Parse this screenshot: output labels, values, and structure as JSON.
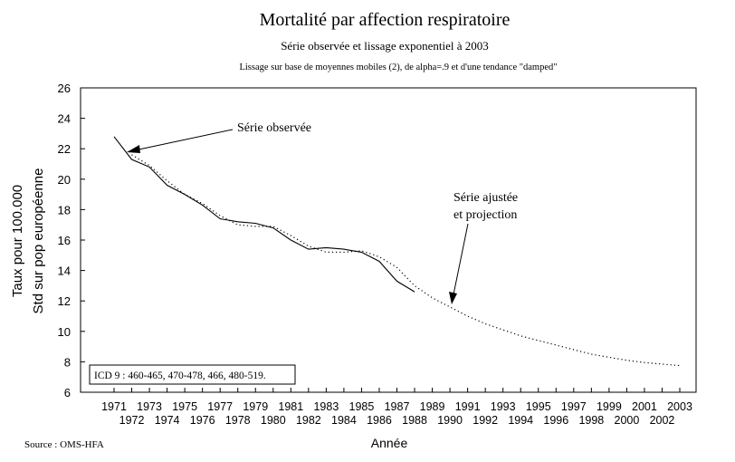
{
  "chart_data": {
    "type": "line",
    "title": "Mortalité par affection respiratoire",
    "subtitle": "Série observée et  lissage exponentiel à 2003",
    "subtitle2": "Lissage sur base de moyennes mobiles (2), de alpha=.9 et d'une tendance \"damped\"",
    "xlabel": "Année",
    "ylabel_line1": "Taux pour 100.000",
    "ylabel_line2": "Std sur pop européenne",
    "ylim": [
      6,
      26
    ],
    "yticks": [
      6,
      8,
      10,
      12,
      14,
      16,
      18,
      20,
      22,
      24,
      26
    ],
    "xlim": [
      1971,
      2003
    ],
    "xticks": [
      1971,
      1972,
      1973,
      1974,
      1975,
      1976,
      1977,
      1978,
      1979,
      1980,
      1981,
      1982,
      1983,
      1984,
      1985,
      1986,
      1987,
      1988,
      1989,
      1990,
      1991,
      1992,
      1993,
      1994,
      1995,
      1996,
      1997,
      1998,
      1999,
      2000,
      2001,
      2002,
      2003
    ],
    "grid": false,
    "series": [
      {
        "name": "Série observée",
        "style": "solid",
        "color": "#000000",
        "x": [
          1971,
          1972,
          1973,
          1974,
          1975,
          1976,
          1977,
          1978,
          1979,
          1980,
          1981,
          1982,
          1983,
          1984,
          1985,
          1986,
          1987,
          1988
        ],
        "values": [
          22.8,
          21.3,
          20.8,
          19.6,
          19.0,
          18.3,
          17.4,
          17.2,
          17.1,
          16.8,
          16.0,
          15.4,
          15.5,
          15.4,
          15.2,
          14.6,
          13.3,
          12.6
        ]
      },
      {
        "name": "Série ajustée et projection",
        "style": "dotted",
        "color": "#000000",
        "x": [
          1972,
          1973,
          1974,
          1975,
          1976,
          1977,
          1978,
          1979,
          1980,
          1981,
          1982,
          1983,
          1984,
          1985,
          1986,
          1987,
          1988,
          1989,
          1990,
          1991,
          1992,
          1993,
          1994,
          1995,
          1996,
          1997,
          1998,
          1999,
          2000,
          2001,
          2002,
          2003
        ],
        "values": [
          21.6,
          20.9,
          19.9,
          19.0,
          18.4,
          17.6,
          17.0,
          16.9,
          16.9,
          16.3,
          15.6,
          15.2,
          15.2,
          15.3,
          14.9,
          14.2,
          13.0,
          12.2,
          11.6,
          11.0,
          10.5,
          10.1,
          9.7,
          9.4,
          9.1,
          8.8,
          8.5,
          8.3,
          8.1,
          7.95,
          7.85,
          7.75
        ]
      }
    ],
    "annotations": [
      {
        "lines": [
          "Série observée"
        ]
      },
      {
        "lines": [
          "Série ajustée",
          "et projection"
        ]
      }
    ],
    "note_box": "ICD 9 :  460-465, 470-478, 466, 480-519.",
    "source": "Source : OMS-HFA"
  }
}
